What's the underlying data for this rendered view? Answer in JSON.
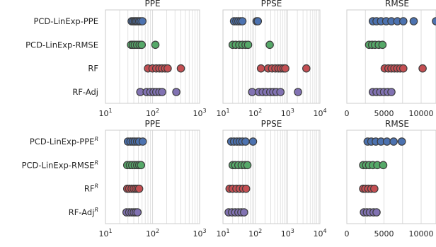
{
  "chart_data": {
    "type": "scatter",
    "series_colors": {
      "PCD-LinExp-PPE": "#4c72b0",
      "PCD-LinExp-RMSE": "#55a868",
      "RF": "#c44e52",
      "RF-Adj": "#8172b2"
    },
    "grid": true,
    "panels": [
      {
        "title": "PPE",
        "scale": "log",
        "xlim": [
          10,
          1000
        ],
        "ticks": [
          {
            "v": 10,
            "label": "10"
          },
          {
            "v": 100,
            "label": "10"
          },
          {
            "v": 1000,
            "label": "10"
          }
        ],
        "tick_sups": [
          "1",
          "2",
          "3"
        ],
        "rows": [
          {
            "series": "PCD-LinExp-PPE",
            "label": "PCD-LinExp-PPE",
            "points": [
              36,
              39,
              42,
              45,
              48,
              52,
              56,
              61
            ]
          },
          {
            "series": "PCD-LinExp-RMSE",
            "label": "PCD-LinExp-RMSE",
            "points": [
              35,
              38,
              42,
              47,
              53,
              59,
              115
            ]
          },
          {
            "series": "RF",
            "label": "RF",
            "points": [
              80,
              100,
              120,
              140,
              160,
              185,
              210,
              400
            ]
          },
          {
            "series": "RF-Adj",
            "label": "RF-Adj",
            "points": [
              55,
              75,
              90,
              105,
              120,
              140,
              160,
              320
            ]
          }
        ]
      },
      {
        "title": "PPSE",
        "scale": "log",
        "xlim": [
          10,
          10000
        ],
        "ticks": [
          {
            "v": 10,
            "label": "10"
          },
          {
            "v": 100,
            "label": "10"
          },
          {
            "v": 1000,
            "label": "10"
          },
          {
            "v": 10000,
            "label": "10"
          }
        ],
        "tick_sups": [
          "1",
          "2",
          "3",
          "4"
        ],
        "rows": [
          {
            "series": "PCD-LinExp-PPE",
            "label": "PCD-LinExp-PPE",
            "points": [
              22,
              26,
              30,
              35,
              40,
              110,
              120
            ]
          },
          {
            "series": "PCD-LinExp-RMSE",
            "label": "PCD-LinExp-RMSE",
            "points": [
              20,
              25,
              32,
              40,
              50,
              60,
              280
            ]
          },
          {
            "series": "RF",
            "label": "RF",
            "points": [
              150,
              250,
              330,
              420,
              520,
              620,
              750,
              850,
              3800
            ]
          },
          {
            "series": "RF-Adj",
            "label": "RF-Adj",
            "points": [
              80,
              130,
              170,
              220,
              290,
              360,
              450,
              600,
              2100
            ]
          }
        ]
      },
      {
        "title": "RMSE",
        "scale": "linear",
        "xlim": [
          0,
          12000
        ],
        "ticks": [
          {
            "v": 0,
            "label": "0"
          },
          {
            "v": 5000,
            "label": "5000"
          },
          {
            "v": 10000,
            "label": "10000"
          }
        ],
        "tick_sups": [
          "",
          "",
          ""
        ],
        "rows": [
          {
            "series": "PCD-LinExp-PPE",
            "label": "PCD-LinExp-PPE",
            "points": [
              3500,
              4000,
              4600,
              5300,
              6000,
              6800,
              7600,
              9000,
              12000
            ]
          },
          {
            "series": "PCD-LinExp-RMSE",
            "label": "PCD-LinExp-RMSE",
            "points": [
              3000,
              3400,
              3800,
              4300,
              4800
            ]
          },
          {
            "series": "RF",
            "label": "RF",
            "points": [
              5100,
              5600,
              6000,
              6400,
              6800,
              7200,
              7600,
              10200
            ]
          },
          {
            "series": "RF-Adj",
            "label": "RF-Adj",
            "points": [
              3500,
              4000,
              4500,
              5000,
              5500,
              6000
            ]
          }
        ]
      },
      {
        "title": "PPE",
        "scale": "log",
        "xlim": [
          10,
          1000
        ],
        "ticks": [
          {
            "v": 10,
            "label": "10"
          },
          {
            "v": 100,
            "label": "10"
          },
          {
            "v": 1000,
            "label": "10"
          }
        ],
        "tick_sups": [
          "1",
          "2",
          "3"
        ],
        "rows": [
          {
            "series": "PCD-LinExp-PPE",
            "label": "PCD-LinExp-PPE",
            "sup": "R",
            "points": [
              30,
              34,
              38,
              42,
              47,
              52,
              62
            ]
          },
          {
            "series": "PCD-LinExp-RMSE",
            "label": "PCD-LinExp-RMSE",
            "sup": "R",
            "points": [
              29,
              33,
              37,
              42,
              47,
              52,
              57
            ]
          },
          {
            "series": "RF",
            "label": "RF",
            "sup": "R",
            "points": [
              29,
              32,
              36,
              40,
              44,
              48,
              52
            ]
          },
          {
            "series": "RF-Adj",
            "label": "RF-Adj",
            "sup": "R",
            "points": [
              28,
              32,
              36,
              40,
              44,
              48
            ]
          }
        ]
      },
      {
        "title": "PPSE",
        "scale": "log",
        "xlim": [
          10,
          10000
        ],
        "ticks": [
          {
            "v": 10,
            "label": "10"
          },
          {
            "v": 100,
            "label": "10"
          },
          {
            "v": 1000,
            "label": "10"
          },
          {
            "v": 10000,
            "label": "10"
          }
        ],
        "tick_sups": [
          "1",
          "2",
          "3",
          "4"
        ],
        "rows": [
          {
            "series": "PCD-LinExp-PPE",
            "label": "PCD-LinExp-PPE",
            "sup": "R",
            "points": [
              18,
              22,
              27,
              33,
              40,
              50,
              85
            ]
          },
          {
            "series": "PCD-LinExp-RMSE",
            "label": "PCD-LinExp-RMSE",
            "sup": "R",
            "points": [
              20,
              24,
              30,
              38,
              47,
              57
            ]
          },
          {
            "series": "RF",
            "label": "RF",
            "sup": "R",
            "points": [
              16,
              20,
              26,
              33,
              42,
              52
            ]
          },
          {
            "series": "RF-Adj",
            "label": "RF-Adj",
            "sup": "R",
            "points": [
              15,
              19,
              24,
              30,
              37,
              45
            ]
          }
        ]
      },
      {
        "title": "RMSE",
        "scale": "linear",
        "xlim": [
          0,
          12000
        ],
        "ticks": [
          {
            "v": 0,
            "label": "0"
          },
          {
            "v": 5000,
            "label": "5000"
          },
          {
            "v": 10000,
            "label": "10000"
          }
        ],
        "tick_sups": [
          "",
          "",
          ""
        ],
        "rows": [
          {
            "series": "PCD-LinExp-PPE",
            "label": "PCD-LinExp-PPE",
            "sup": "R",
            "points": [
              2800,
              3300,
              3900,
              4600,
              5400,
              6300,
              7400
            ]
          },
          {
            "series": "PCD-LinExp-RMSE",
            "label": "PCD-LinExp-RMSE",
            "sup": "R",
            "points": [
              2200,
              2600,
              3000,
              3500,
              4100,
              4900
            ]
          },
          {
            "series": "RF",
            "label": "RF",
            "sup": "R",
            "points": [
              2200,
              2500,
              2900,
              3300,
              3700
            ]
          },
          {
            "series": "RF-Adj",
            "label": "RF-Adj",
            "sup": "R",
            "points": [
              2300,
              2700,
              3100,
              3600,
              4000
            ]
          }
        ]
      }
    ]
  }
}
